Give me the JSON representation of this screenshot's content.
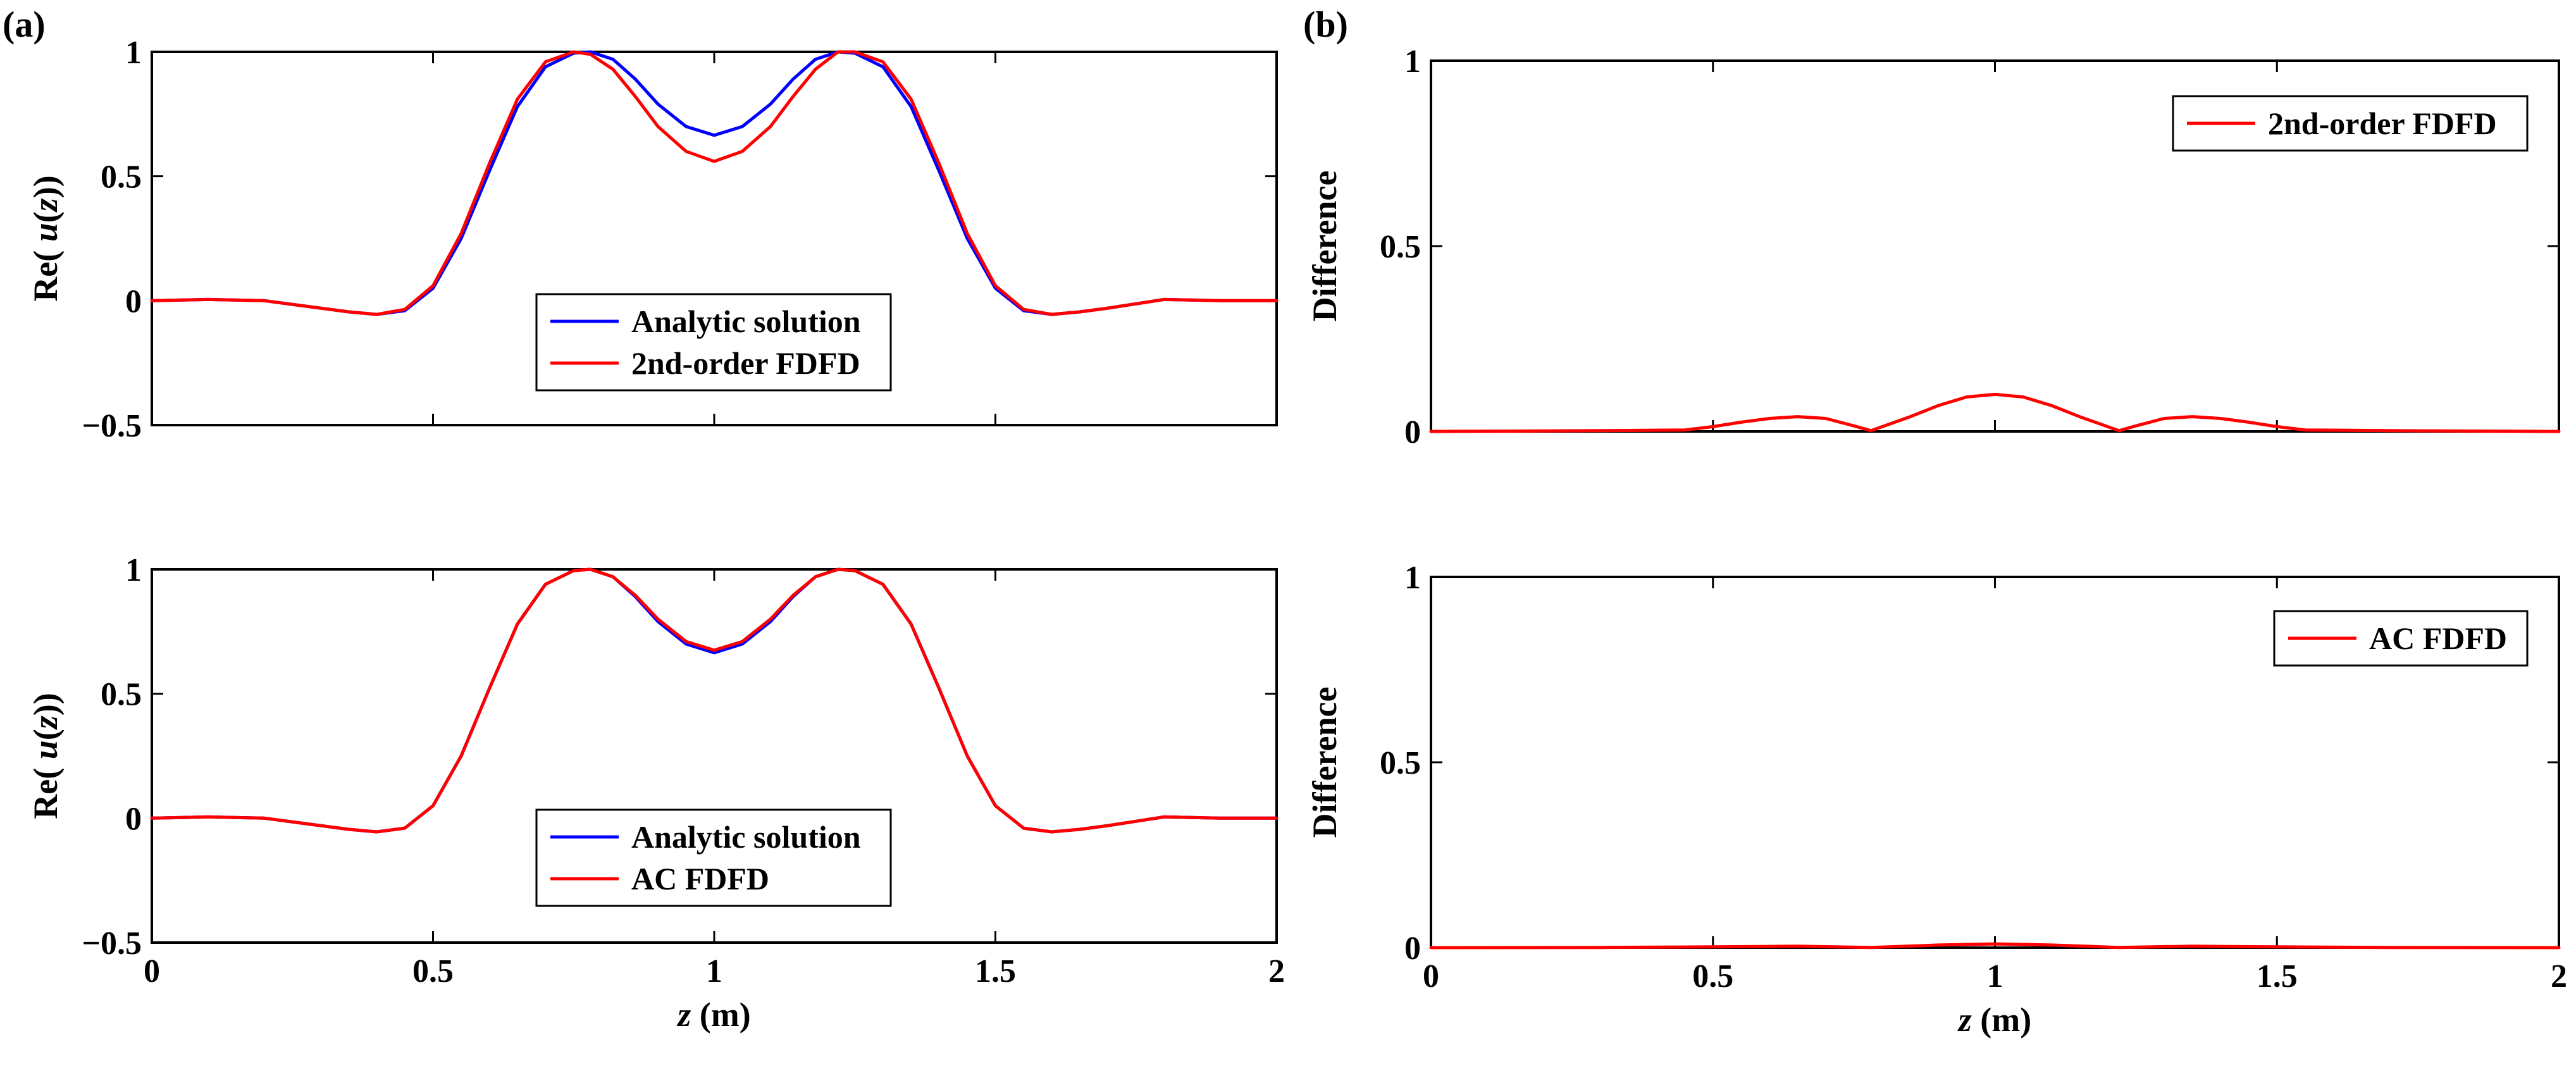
{
  "figure": {
    "panel_labels": [
      "(a)",
      "(b)"
    ]
  },
  "colors": {
    "analytic": "#0000ff",
    "fdfd": "#ff0000",
    "axes": "#000000",
    "background": "#ffffff"
  },
  "chart_data": [
    {
      "type": "line",
      "panel": "(a)",
      "title": "",
      "xlabel": "",
      "ylabel": "Re( u(z))",
      "xlim": [
        0,
        2
      ],
      "ylim": [
        -0.5,
        1
      ],
      "xticks": [
        "0",
        "0.5",
        "1",
        "1.5",
        "2"
      ],
      "xticks_visible": false,
      "yticks": [
        "−0.5",
        "0",
        "0.5",
        "1"
      ],
      "grid": false,
      "legend_position": "lower-center",
      "series": [
        {
          "name": "Analytic solution",
          "color": "#0000ff",
          "x": [
            0,
            0.1,
            0.2,
            0.3,
            0.35,
            0.4,
            0.45,
            0.5,
            0.55,
            0.6,
            0.65,
            0.7,
            0.75,
            0.78,
            0.82,
            0.86,
            0.9,
            0.95,
            1.0,
            1.05,
            1.1,
            1.14,
            1.18,
            1.22,
            1.25,
            1.3,
            1.35,
            1.4,
            1.45,
            1.5,
            1.55,
            1.6,
            1.65,
            1.7,
            1.8,
            1.9,
            2.0
          ],
          "y": [
            0,
            0.005,
            0,
            -0.03,
            -0.045,
            -0.055,
            -0.04,
            0.05,
            0.25,
            0.52,
            0.78,
            0.94,
            0.995,
            1.0,
            0.97,
            0.89,
            0.79,
            0.7,
            0.665,
            0.7,
            0.79,
            0.89,
            0.97,
            1.0,
            0.995,
            0.94,
            0.78,
            0.52,
            0.25,
            0.05,
            -0.04,
            -0.055,
            -0.045,
            -0.03,
            0.005,
            0,
            0
          ]
        },
        {
          "name": "2nd-order FDFD",
          "color": "#ff0000",
          "x": [
            0,
            0.1,
            0.2,
            0.3,
            0.35,
            0.4,
            0.45,
            0.5,
            0.55,
            0.6,
            0.65,
            0.7,
            0.75,
            0.78,
            0.82,
            0.86,
            0.9,
            0.95,
            1.0,
            1.05,
            1.1,
            1.14,
            1.18,
            1.22,
            1.25,
            1.3,
            1.35,
            1.4,
            1.45,
            1.5,
            1.55,
            1.6,
            1.65,
            1.7,
            1.8,
            1.9,
            2.0
          ],
          "y": [
            0,
            0.005,
            0,
            -0.03,
            -0.045,
            -0.055,
            -0.035,
            0.06,
            0.27,
            0.55,
            0.81,
            0.96,
            1.0,
            0.99,
            0.93,
            0.82,
            0.7,
            0.6,
            0.56,
            0.6,
            0.7,
            0.82,
            0.93,
            1.0,
            1.0,
            0.96,
            0.81,
            0.55,
            0.27,
            0.06,
            -0.035,
            -0.055,
            -0.045,
            -0.03,
            0.005,
            0,
            0
          ]
        }
      ]
    },
    {
      "type": "line",
      "panel": "(a)",
      "title": "",
      "xlabel": "z (m)",
      "ylabel": "Re( u(z))",
      "xlim": [
        0,
        2
      ],
      "ylim": [
        -0.5,
        1
      ],
      "xticks": [
        "0",
        "0.5",
        "1",
        "1.5",
        "2"
      ],
      "xticks_visible": true,
      "yticks": [
        "−0.5",
        "0",
        "0.5",
        "1"
      ],
      "grid": false,
      "legend_position": "lower-center",
      "series": [
        {
          "name": "Analytic solution",
          "color": "#0000ff",
          "x": [
            0,
            0.1,
            0.2,
            0.3,
            0.35,
            0.4,
            0.45,
            0.5,
            0.55,
            0.6,
            0.65,
            0.7,
            0.75,
            0.78,
            0.82,
            0.86,
            0.9,
            0.95,
            1.0,
            1.05,
            1.1,
            1.14,
            1.18,
            1.22,
            1.25,
            1.3,
            1.35,
            1.4,
            1.45,
            1.5,
            1.55,
            1.6,
            1.65,
            1.7,
            1.8,
            1.9,
            2.0
          ],
          "y": [
            0,
            0.005,
            0,
            -0.03,
            -0.045,
            -0.055,
            -0.04,
            0.05,
            0.25,
            0.52,
            0.78,
            0.94,
            0.995,
            1.0,
            0.97,
            0.89,
            0.79,
            0.7,
            0.665,
            0.7,
            0.79,
            0.89,
            0.97,
            1.0,
            0.995,
            0.94,
            0.78,
            0.52,
            0.25,
            0.05,
            -0.04,
            -0.055,
            -0.045,
            -0.03,
            0.005,
            0,
            0
          ]
        },
        {
          "name": "AC FDFD",
          "color": "#ff0000",
          "x": [
            0,
            0.1,
            0.2,
            0.3,
            0.35,
            0.4,
            0.45,
            0.5,
            0.55,
            0.6,
            0.65,
            0.7,
            0.75,
            0.78,
            0.82,
            0.86,
            0.9,
            0.95,
            1.0,
            1.05,
            1.1,
            1.14,
            1.18,
            1.22,
            1.25,
            1.3,
            1.35,
            1.4,
            1.45,
            1.5,
            1.55,
            1.6,
            1.65,
            1.7,
            1.8,
            1.9,
            2.0
          ],
          "y": [
            0,
            0.005,
            0,
            -0.03,
            -0.045,
            -0.055,
            -0.04,
            0.05,
            0.25,
            0.52,
            0.78,
            0.94,
            0.995,
            1.0,
            0.97,
            0.895,
            0.8,
            0.71,
            0.675,
            0.71,
            0.8,
            0.895,
            0.97,
            1.0,
            0.995,
            0.94,
            0.78,
            0.52,
            0.25,
            0.05,
            -0.04,
            -0.055,
            -0.045,
            -0.03,
            0.005,
            0,
            0
          ]
        }
      ]
    },
    {
      "type": "line",
      "panel": "(b)",
      "title": "",
      "xlabel": "",
      "ylabel": "Difference",
      "xlim": [
        0,
        2
      ],
      "ylim": [
        0,
        1
      ],
      "xticks": [
        "0",
        "0.5",
        "1",
        "1.5",
        "2"
      ],
      "xticks_visible": false,
      "yticks": [
        "0",
        "0.5",
        "1"
      ],
      "grid": false,
      "legend_position": "top-right",
      "series": [
        {
          "name": "2nd-order FDFD",
          "color": "#ff0000",
          "x": [
            0,
            0.3,
            0.45,
            0.5,
            0.55,
            0.6,
            0.65,
            0.7,
            0.75,
            0.78,
            0.85,
            0.9,
            0.95,
            1.0,
            1.05,
            1.1,
            1.15,
            1.22,
            1.25,
            1.3,
            1.35,
            1.4,
            1.45,
            1.5,
            1.55,
            1.7,
            2.0
          ],
          "y": [
            0,
            0.002,
            0.004,
            0.013,
            0.025,
            0.035,
            0.04,
            0.035,
            0.015,
            0.002,
            0.04,
            0.07,
            0.093,
            0.1,
            0.093,
            0.07,
            0.04,
            0.002,
            0.015,
            0.035,
            0.04,
            0.035,
            0.025,
            0.013,
            0.004,
            0.002,
            0
          ]
        }
      ]
    },
    {
      "type": "line",
      "panel": "(b)",
      "title": "",
      "xlabel": "z (m)",
      "ylabel": "Difference",
      "xlim": [
        0,
        2
      ],
      "ylim": [
        0,
        1
      ],
      "xticks": [
        "0",
        "0.5",
        "1",
        "1.5",
        "2"
      ],
      "xticks_visible": true,
      "yticks": [
        "0",
        "0.5",
        "1"
      ],
      "grid": false,
      "legend_position": "top-right",
      "series": [
        {
          "name": "AC FDFD",
          "color": "#ff0000",
          "x": [
            0,
            0.3,
            0.5,
            0.65,
            0.78,
            0.9,
            1.0,
            1.1,
            1.22,
            1.35,
            1.5,
            1.7,
            2.0
          ],
          "y": [
            0,
            0.0005,
            0.002,
            0.004,
            0.0005,
            0.007,
            0.01,
            0.007,
            0.0005,
            0.004,
            0.002,
            0.0005,
            0
          ]
        }
      ]
    }
  ]
}
